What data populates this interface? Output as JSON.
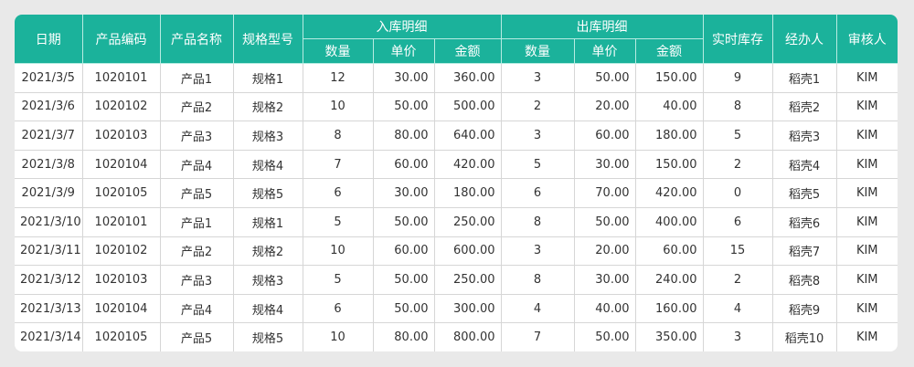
{
  "colors": {
    "header_bg": "#1bb29b",
    "header_text": "#ffffff",
    "page_bg": "#e9e9e9"
  },
  "headers": {
    "date": "日期",
    "code": "产品编码",
    "name": "产品名称",
    "spec": "规格型号",
    "in_group": "入库明细",
    "out_group": "出库明细",
    "qty": "数量",
    "price": "单价",
    "amount": "金额",
    "stock": "实时库存",
    "handler": "经办人",
    "reviewer": "审核人"
  },
  "rows": [
    [
      "2021/3/5",
      "1020101",
      "产品1",
      "规格1",
      "12",
      "30.00",
      "360.00",
      "3",
      "50.00",
      "150.00",
      "9",
      "稻壳1",
      "KIM"
    ],
    [
      "2021/3/6",
      "1020102",
      "产品2",
      "规格2",
      "10",
      "50.00",
      "500.00",
      "2",
      "20.00",
      "40.00",
      "8",
      "稻壳2",
      "KIM"
    ],
    [
      "2021/3/7",
      "1020103",
      "产品3",
      "规格3",
      "8",
      "80.00",
      "640.00",
      "3",
      "60.00",
      "180.00",
      "5",
      "稻壳3",
      "KIM"
    ],
    [
      "2021/3/8",
      "1020104",
      "产品4",
      "规格4",
      "7",
      "60.00",
      "420.00",
      "5",
      "30.00",
      "150.00",
      "2",
      "稻壳4",
      "KIM"
    ],
    [
      "2021/3/9",
      "1020105",
      "产品5",
      "规格5",
      "6",
      "30.00",
      "180.00",
      "6",
      "70.00",
      "420.00",
      "0",
      "稻壳5",
      "KIM"
    ],
    [
      "2021/3/10",
      "1020101",
      "产品1",
      "规格1",
      "5",
      "50.00",
      "250.00",
      "8",
      "50.00",
      "400.00",
      "6",
      "稻壳6",
      "KIM"
    ],
    [
      "2021/3/11",
      "1020102",
      "产品2",
      "规格2",
      "10",
      "60.00",
      "600.00",
      "3",
      "20.00",
      "60.00",
      "15",
      "稻壳7",
      "KIM"
    ],
    [
      "2021/3/12",
      "1020103",
      "产品3",
      "规格3",
      "5",
      "50.00",
      "250.00",
      "8",
      "30.00",
      "240.00",
      "2",
      "稻壳8",
      "KIM"
    ],
    [
      "2021/3/13",
      "1020104",
      "产品4",
      "规格4",
      "6",
      "50.00",
      "300.00",
      "4",
      "40.00",
      "160.00",
      "4",
      "稻壳9",
      "KIM"
    ],
    [
      "2021/3/14",
      "1020105",
      "产品5",
      "规格5",
      "10",
      "80.00",
      "800.00",
      "7",
      "50.00",
      "350.00",
      "3",
      "稻壳10",
      "KIM"
    ]
  ]
}
